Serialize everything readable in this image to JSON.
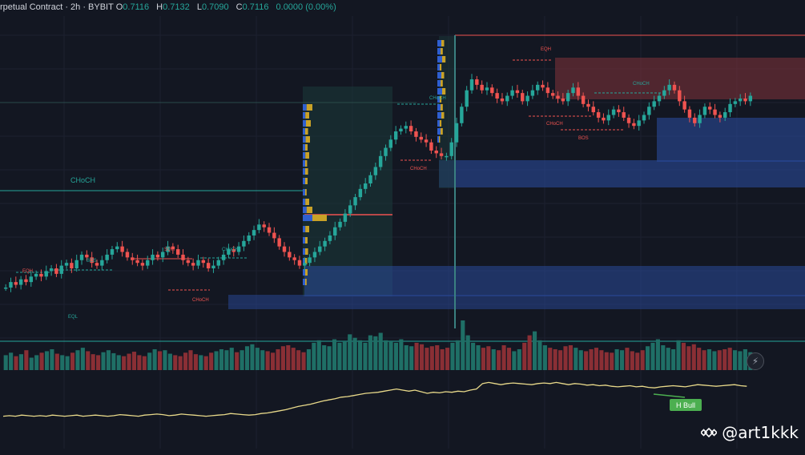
{
  "header": {
    "symbol_text": "rpetual Contract · 2h · BYBIT",
    "o_label": "O",
    "o_value": "0.7116",
    "h_label": "H",
    "h_value": "0.7132",
    "l_label": "L",
    "l_value": "0.7090",
    "c_label": "C",
    "c_value": "0.7116",
    "change": "0.0000 (0.00%)"
  },
  "watermark": {
    "handle": "@art1kkk",
    "logo_icon": "binance-diamond-icon"
  },
  "alert_icon": "lightning-alert-icon",
  "colors": {
    "background": "#131722",
    "bull": "#26a69a",
    "bear": "#ef5350",
    "zone_blue": "#2a4a9a",
    "zone_red": "#7a3038",
    "rsi_line": "#e8d98a",
    "label_bull": "#4caf50"
  },
  "chart_data": [
    {
      "type": "candlestick",
      "title": "",
      "price_ohlc": {
        "open": 0.7116,
        "high": 0.7132,
        "low": 0.709,
        "close": 0.7116,
        "change": "0.0000 (0.00%)"
      },
      "closes": [
        0.12,
        0.14,
        0.13,
        0.15,
        0.14,
        0.16,
        0.17,
        0.16,
        0.18,
        0.19,
        0.17,
        0.2,
        0.21,
        0.19,
        0.22,
        0.24,
        0.23,
        0.21,
        0.2,
        0.22,
        0.24,
        0.26,
        0.27,
        0.25,
        0.23,
        0.22,
        0.21,
        0.2,
        0.22,
        0.24,
        0.23,
        0.25,
        0.27,
        0.26,
        0.24,
        0.22,
        0.21,
        0.2,
        0.22,
        0.21,
        0.19,
        0.2,
        0.22,
        0.24,
        0.26,
        0.25,
        0.27,
        0.29,
        0.31,
        0.33,
        0.35,
        0.34,
        0.32,
        0.3,
        0.27,
        0.25,
        0.23,
        0.22,
        0.2,
        0.21,
        0.23,
        0.25,
        0.27,
        0.29,
        0.31,
        0.34,
        0.36,
        0.39,
        0.42,
        0.45,
        0.48,
        0.5,
        0.53,
        0.56,
        0.6,
        0.63,
        0.66,
        0.69,
        0.7,
        0.71,
        0.69,
        0.67,
        0.66,
        0.65,
        0.62,
        0.61,
        0.6,
        0.6,
        0.65,
        0.72,
        0.78,
        0.84,
        0.88,
        0.86,
        0.84,
        0.85,
        0.83,
        0.81,
        0.8,
        0.82,
        0.84,
        0.83,
        0.8,
        0.82,
        0.84,
        0.86,
        0.85,
        0.83,
        0.82,
        0.81,
        0.8,
        0.83,
        0.85,
        0.82,
        0.79,
        0.78,
        0.76,
        0.74,
        0.73,
        0.75,
        0.77,
        0.76,
        0.74,
        0.72,
        0.71,
        0.73,
        0.75,
        0.78,
        0.8,
        0.82,
        0.84,
        0.86,
        0.84,
        0.8,
        0.77,
        0.74,
        0.72,
        0.75,
        0.78,
        0.77,
        0.75,
        0.74,
        0.76,
        0.79,
        0.8,
        0.81,
        0.8,
        0.82
      ],
      "volumes": [
        0.3,
        0.35,
        0.28,
        0.32,
        0.4,
        0.25,
        0.3,
        0.35,
        0.38,
        0.42,
        0.33,
        0.3,
        0.28,
        0.35,
        0.4,
        0.45,
        0.38,
        0.32,
        0.3,
        0.36,
        0.4,
        0.34,
        0.3,
        0.28,
        0.33,
        0.37,
        0.3,
        0.28,
        0.35,
        0.42,
        0.38,
        0.4,
        0.33,
        0.3,
        0.28,
        0.35,
        0.4,
        0.32,
        0.3,
        0.28,
        0.35,
        0.38,
        0.42,
        0.4,
        0.45,
        0.36,
        0.4,
        0.48,
        0.52,
        0.45,
        0.4,
        0.38,
        0.35,
        0.42,
        0.48,
        0.5,
        0.45,
        0.4,
        0.36,
        0.42,
        0.55,
        0.6,
        0.5,
        0.48,
        0.62,
        0.55,
        0.58,
        0.72,
        0.65,
        0.6,
        0.55,
        0.7,
        0.68,
        0.75,
        0.6,
        0.58,
        0.55,
        0.62,
        0.5,
        0.48,
        0.55,
        0.52,
        0.45,
        0.48,
        0.5,
        0.42,
        0.45,
        0.55,
        0.6,
        1.0,
        0.7,
        0.55,
        0.5,
        0.45,
        0.48,
        0.42,
        0.4,
        0.5,
        0.45,
        0.38,
        0.42,
        0.55,
        0.7,
        0.78,
        0.6,
        0.5,
        0.45,
        0.42,
        0.4,
        0.48,
        0.5,
        0.45,
        0.4,
        0.38,
        0.42,
        0.45,
        0.4,
        0.36,
        0.35,
        0.42,
        0.4,
        0.45,
        0.38,
        0.35,
        0.4,
        0.48,
        0.55,
        0.62,
        0.5,
        0.45,
        0.42,
        0.6,
        0.55,
        0.48,
        0.52,
        0.45,
        0.4,
        0.42,
        0.38,
        0.4,
        0.42,
        0.45,
        0.4,
        0.38,
        0.42,
        0.36
      ],
      "rsi": [
        0.3,
        0.31,
        0.3,
        0.32,
        0.31,
        0.3,
        0.31,
        0.3,
        0.32,
        0.31,
        0.3,
        0.31,
        0.32,
        0.3,
        0.31,
        0.32,
        0.31,
        0.3,
        0.31,
        0.33,
        0.32,
        0.31,
        0.3,
        0.32,
        0.33,
        0.34,
        0.33,
        0.31,
        0.32,
        0.34,
        0.33,
        0.32,
        0.31,
        0.3,
        0.31,
        0.32,
        0.33,
        0.35,
        0.34,
        0.33,
        0.32,
        0.33,
        0.35,
        0.36,
        0.38,
        0.4,
        0.42,
        0.45,
        0.48,
        0.5,
        0.52,
        0.55,
        0.58,
        0.6,
        0.62,
        0.65,
        0.66,
        0.68,
        0.7,
        0.72,
        0.73,
        0.74,
        0.76,
        0.78,
        0.8,
        0.78,
        0.76,
        0.78,
        0.75,
        0.72,
        0.74,
        0.73,
        0.75,
        0.74,
        0.76,
        0.75,
        0.78,
        0.8,
        0.9,
        0.92,
        0.9,
        0.88,
        0.9,
        0.91,
        0.9,
        0.89,
        0.88,
        0.9,
        0.91,
        0.9,
        0.92,
        0.9,
        0.88,
        0.9,
        0.89,
        0.87,
        0.88,
        0.86,
        0.87,
        0.85,
        0.84,
        0.85,
        0.86,
        0.84,
        0.85,
        0.83,
        0.82,
        0.84,
        0.85,
        0.86,
        0.85,
        0.84,
        0.86,
        0.88,
        0.87,
        0.86,
        0.85,
        0.86,
        0.87,
        0.88,
        0.86,
        0.85
      ],
      "annotations": {
        "choch_big": "CHoCH",
        "small_labels": [
          {
            "text": "EQH",
            "color": "bear"
          },
          {
            "text": "BOS",
            "color": "bull"
          },
          {
            "text": "SQH",
            "color": "bear"
          },
          {
            "text": "CHoCH",
            "color": "bull"
          },
          {
            "text": "EQL",
            "color": "bull"
          },
          {
            "text": "CHoCH",
            "color": "bear"
          },
          {
            "text": "CHoCH",
            "color": "bear"
          },
          {
            "text": "CHoCH",
            "color": "bull"
          },
          {
            "text": "EQH",
            "color": "bear"
          },
          {
            "text": "CHoCH",
            "color": "bull"
          },
          {
            "text": "CHoCH",
            "color": "bear"
          },
          {
            "text": "BOS",
            "color": "bear"
          }
        ],
        "rsi_label": "H Bull"
      }
    }
  ]
}
